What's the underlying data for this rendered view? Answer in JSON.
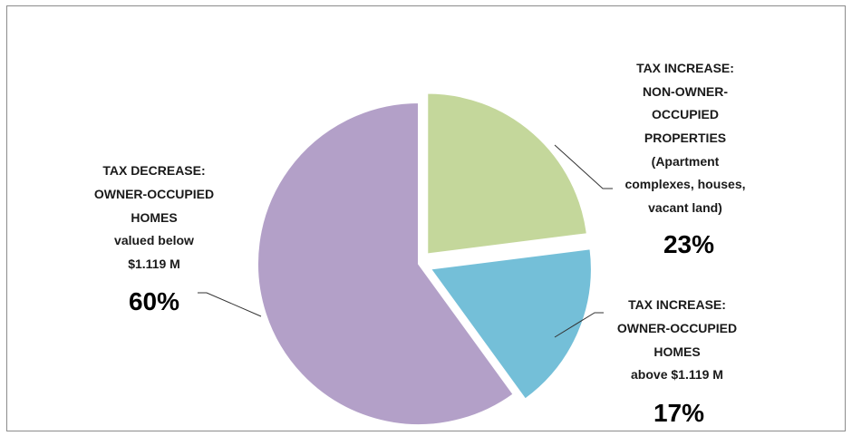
{
  "chart_data": {
    "type": "pie",
    "slices": [
      {
        "label_lines": [
          "TAX INCREASE:",
          "NON-OWNER-",
          "OCCUPIED",
          "PROPERTIES",
          "(Apartment",
          "complexes, houses,",
          "vacant  land)"
        ],
        "percent_text": "23%",
        "value": 23,
        "color": "#c4d79b",
        "exploded": true
      },
      {
        "label_lines": [
          "TAX INCREASE:",
          "OWNER-OCCUPIED",
          "HOMES",
          "above $1.119 M"
        ],
        "percent_text": "17%",
        "value": 17,
        "color": "#74bfd8",
        "exploded": true
      },
      {
        "label_lines": [
          "TAX DECREASE:",
          "OWNER-OCCUPIED",
          "HOMES",
          "valued below",
          "$1.119 M"
        ],
        "percent_text": "60%",
        "value": 60,
        "color": "#b3a0c8",
        "exploded": false
      }
    ],
    "start_angle_deg": 0,
    "direction": "clockwise",
    "slice_outline": "#ffffff"
  }
}
